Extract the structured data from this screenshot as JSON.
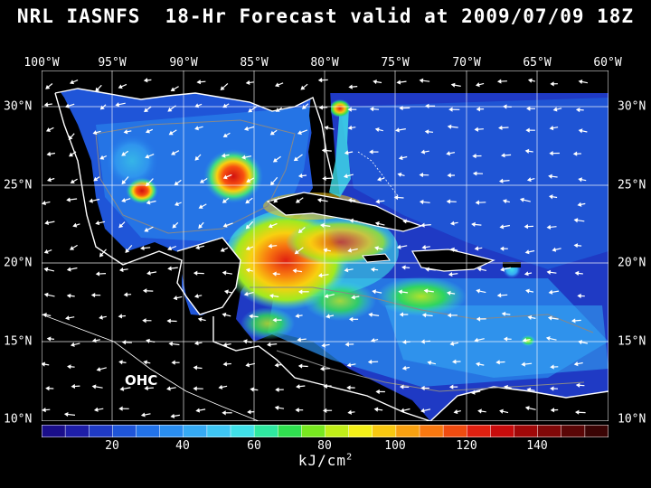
{
  "title": "NRL IASNFS  18-Hr Forecast valid at 2009/07/09 18Z",
  "map_label": "OHC",
  "lon_labels": [
    "100°W",
    "95°W",
    "90°W",
    "85°W",
    "80°W",
    "75°W",
    "70°W",
    "65°W",
    "60°W"
  ],
  "lat_labels": [
    "30°N",
    "25°N",
    "20°N",
    "15°N",
    "10°N"
  ],
  "colorbar": {
    "tick_labels": [
      "20",
      "40",
      "60",
      "80",
      "100",
      "120",
      "140"
    ],
    "units_main": "kJ/cm",
    "units_exp": "2",
    "colors": [
      "#1a0e8a",
      "#1e1ea8",
      "#1f3ac4",
      "#1f55d8",
      "#2272e8",
      "#2a8ef0",
      "#36aaf4",
      "#3fc6f4",
      "#40e0e8",
      "#2fe8a0",
      "#30e050",
      "#78e820",
      "#c0ee18",
      "#f4f018",
      "#f8c810",
      "#f8a010",
      "#f87810",
      "#f04c10",
      "#e02010",
      "#c80c0c",
      "#a00808",
      "#800808",
      "#5a0606",
      "#3a0404"
    ],
    "range": [
      0,
      160
    ]
  }
}
